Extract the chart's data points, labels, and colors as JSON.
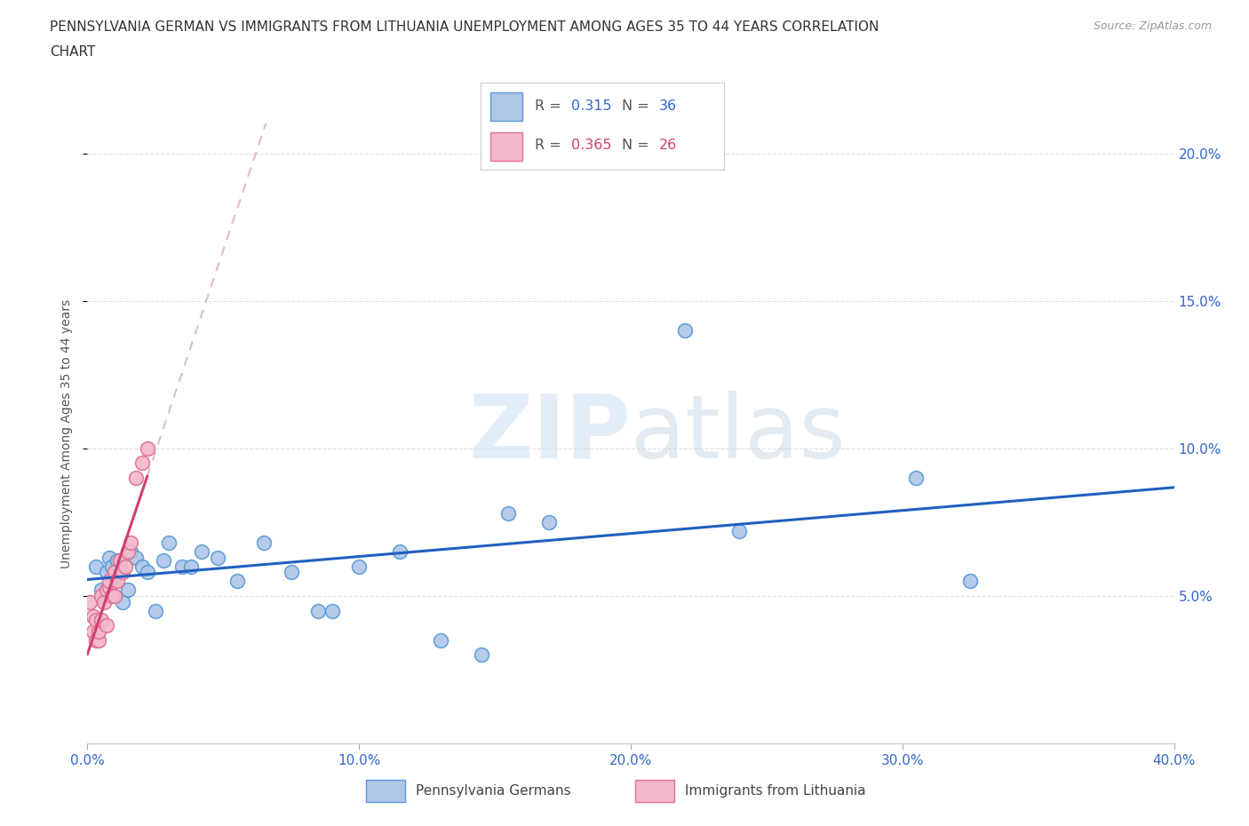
{
  "title_line1": "PENNSYLVANIA GERMAN VS IMMIGRANTS FROM LITHUANIA UNEMPLOYMENT AMONG AGES 35 TO 44 YEARS CORRELATION",
  "title_line2": "CHART",
  "source": "Source: ZipAtlas.com",
  "ylabel": "Unemployment Among Ages 35 to 44 years",
  "xmin": 0.0,
  "xmax": 0.4,
  "ymin": 0.0,
  "ymax": 0.21,
  "xticks": [
    0.0,
    0.1,
    0.2,
    0.3,
    0.4
  ],
  "yticks": [
    0.05,
    0.1,
    0.15,
    0.2
  ],
  "xtick_labels": [
    "0.0%",
    "10.0%",
    "20.0%",
    "30.0%",
    "40.0%"
  ],
  "ytick_labels": [
    "5.0%",
    "10.0%",
    "15.0%",
    "20.0%"
  ],
  "pennsylvania_x": [
    0.003,
    0.005,
    0.007,
    0.008,
    0.009,
    0.01,
    0.011,
    0.012,
    0.013,
    0.015,
    0.016,
    0.018,
    0.02,
    0.022,
    0.025,
    0.028,
    0.03,
    0.035,
    0.038,
    0.042,
    0.048,
    0.055,
    0.065,
    0.075,
    0.085,
    0.09,
    0.1,
    0.115,
    0.13,
    0.145,
    0.155,
    0.17,
    0.22,
    0.24,
    0.305,
    0.325
  ],
  "pennsylvania_y": [
    0.06,
    0.052,
    0.058,
    0.063,
    0.06,
    0.055,
    0.062,
    0.06,
    0.048,
    0.052,
    0.065,
    0.063,
    0.06,
    0.058,
    0.045,
    0.062,
    0.068,
    0.06,
    0.06,
    0.065,
    0.063,
    0.055,
    0.068,
    0.058,
    0.045,
    0.045,
    0.06,
    0.065,
    0.035,
    0.03,
    0.078,
    0.075,
    0.14,
    0.072,
    0.09,
    0.055
  ],
  "lithuania_x": [
    0.001,
    0.002,
    0.002,
    0.003,
    0.003,
    0.004,
    0.004,
    0.005,
    0.005,
    0.006,
    0.007,
    0.007,
    0.008,
    0.008,
    0.009,
    0.01,
    0.01,
    0.011,
    0.012,
    0.013,
    0.014,
    0.015,
    0.016,
    0.018,
    0.02,
    0.022
  ],
  "lithuania_y": [
    0.048,
    0.038,
    0.043,
    0.035,
    0.042,
    0.035,
    0.038,
    0.042,
    0.05,
    0.048,
    0.04,
    0.052,
    0.053,
    0.055,
    0.05,
    0.05,
    0.058,
    0.055,
    0.062,
    0.058,
    0.06,
    0.065,
    0.068,
    0.09,
    0.095,
    0.1
  ],
  "pa_color": "#aec6e8",
  "pa_edge_color": "#5b9bd5",
  "lit_color": "#f4b8cb",
  "lit_edge_color": "#e07090",
  "pa_R": 0.315,
  "pa_N": 36,
  "lit_R": 0.365,
  "lit_N": 26,
  "trend_pa_color": "#2060c0",
  "trend_lit_solid_color": "#d04070",
  "trend_lit_dash_color": "#d8a0b0",
  "background_color": "#ffffff",
  "grid_color": "#e0e0e0"
}
